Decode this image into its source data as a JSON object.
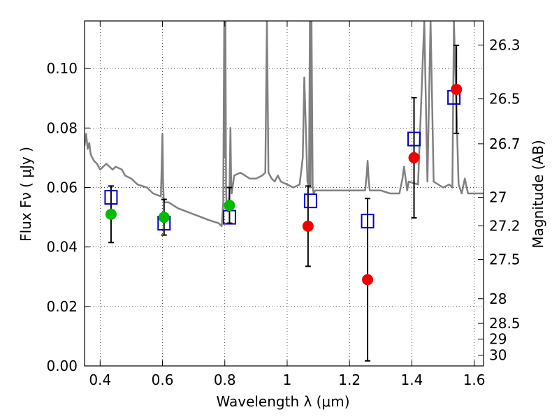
{
  "chart_data": {
    "type": "scatter",
    "xlabel": "Wavelength  λ (μm)",
    "ylabel": "Flux  Fν  ( μJy )",
    "y2label": "Magnitude (AB)",
    "xlim": [
      0.35,
      1.63
    ],
    "ylim": [
      0.0,
      0.116
    ],
    "x_ticks": [
      0.4,
      0.6,
      0.8,
      1.0,
      1.2,
      1.4,
      1.6
    ],
    "x_tick_labels": [
      "0.4",
      "0.6",
      "0.8",
      "1",
      "1.2",
      "1.4",
      "1.6"
    ],
    "y_ticks": [
      0.0,
      0.02,
      0.04,
      0.06,
      0.08,
      0.1
    ],
    "y_tick_labels": [
      "0.00",
      "0.02",
      "0.04",
      "0.06",
      "0.08",
      "0.10"
    ],
    "y2_ticks": [
      {
        "label": "26.3",
        "flux": 0.1079
      },
      {
        "label": "26.5",
        "flux": 0.0898
      },
      {
        "label": "26.7",
        "flux": 0.0747
      },
      {
        "label": "27",
        "flux": 0.0567
      },
      {
        "label": "27.2",
        "flux": 0.0471
      },
      {
        "label": "27.5",
        "flux": 0.0358
      },
      {
        "label": "28",
        "flux": 0.0226
      },
      {
        "label": "28.5",
        "flux": 0.0143
      },
      {
        "label": "29",
        "flux": 0.009
      },
      {
        "label": "30",
        "flux": 0.0036
      }
    ],
    "grid": true,
    "grid_style": "dotted",
    "colors": {
      "model": "#808080",
      "observed_green": "#00bb00",
      "observed_red": "#ee0000",
      "model_photometry": "#0000cc",
      "errorbar": "#000000"
    },
    "series": [
      {
        "type": "line",
        "x": [
          0.35,
          0.355,
          0.36,
          0.365,
          0.37,
          0.38,
          0.39,
          0.4,
          0.42,
          0.44,
          0.45,
          0.47,
          0.48,
          0.5,
          0.52,
          0.55,
          0.57,
          0.595,
          0.6,
          0.602,
          0.604,
          0.606,
          0.62,
          0.65,
          0.7,
          0.75,
          0.78,
          0.79,
          0.795,
          0.798,
          0.8,
          0.802,
          0.804,
          0.806,
          0.81,
          0.815,
          0.818,
          0.82,
          0.822,
          0.825,
          0.83,
          0.85,
          0.88,
          0.9,
          0.92,
          0.93,
          0.935,
          0.94,
          0.95,
          0.96,
          0.97,
          0.98,
          1.0,
          1.02,
          1.04,
          1.05,
          1.055,
          1.06,
          1.065,
          1.07,
          1.073,
          1.075,
          1.078,
          1.082,
          1.085,
          1.09,
          1.1,
          1.12,
          1.15,
          1.2,
          1.25,
          1.255,
          1.258,
          1.262,
          1.265,
          1.28,
          1.3,
          1.33,
          1.36,
          1.37,
          1.375,
          1.38,
          1.385,
          1.39,
          1.42,
          1.44,
          1.45,
          1.46,
          1.47,
          1.5,
          1.52,
          1.53,
          1.535,
          1.55,
          1.56,
          1.57,
          1.58,
          1.6,
          1.63
        ],
        "y": [
          0.074,
          0.078,
          0.073,
          0.075,
          0.071,
          0.069,
          0.068,
          0.066,
          0.068,
          0.066,
          0.067,
          0.066,
          0.064,
          0.063,
          0.061,
          0.06,
          0.058,
          0.057,
          0.078,
          0.062,
          0.056,
          0.055,
          0.055,
          0.053,
          0.051,
          0.049,
          0.048,
          0.047,
          0.055,
          0.116,
          0.07,
          0.116,
          0.06,
          0.053,
          0.052,
          0.058,
          0.08,
          0.064,
          0.058,
          0.06,
          0.064,
          0.065,
          0.063,
          0.063,
          0.064,
          0.065,
          0.116,
          0.065,
          0.063,
          0.062,
          0.064,
          0.062,
          0.061,
          0.06,
          0.061,
          0.07,
          0.097,
          0.08,
          0.062,
          0.06,
          0.116,
          0.06,
          0.116,
          0.06,
          0.058,
          0.059,
          0.059,
          0.059,
          0.059,
          0.059,
          0.059,
          0.064,
          0.069,
          0.062,
          0.059,
          0.059,
          0.059,
          0.058,
          0.058,
          0.063,
          0.067,
          0.063,
          0.059,
          0.062,
          0.061,
          0.116,
          0.062,
          0.116,
          0.062,
          0.06,
          0.061,
          0.06,
          0.116,
          0.061,
          0.058,
          0.063,
          0.058,
          0.058,
          0.058
        ]
      },
      {
        "type": "scatter",
        "marker": "circle-green",
        "x": [
          0.435,
          0.605,
          0.815
        ],
        "y": [
          0.051,
          0.05,
          0.054
        ],
        "yerr": [
          0.0095,
          0.006,
          0.006
        ]
      },
      {
        "type": "scatter",
        "marker": "circle-red",
        "x": [
          1.067,
          1.258,
          1.407,
          1.543
        ],
        "y": [
          0.047,
          0.029,
          0.07,
          0.093
        ],
        "yerr": [
          0.0135,
          0.0273,
          0.0202,
          0.0148
        ]
      },
      {
        "type": "scatter",
        "marker": "square-blue",
        "x": [
          0.435,
          0.605,
          0.815,
          1.075,
          1.258,
          1.407,
          1.535
        ],
        "y": [
          0.0567,
          0.048,
          0.05,
          0.0555,
          0.0487,
          0.0763,
          0.0903
        ]
      }
    ]
  }
}
